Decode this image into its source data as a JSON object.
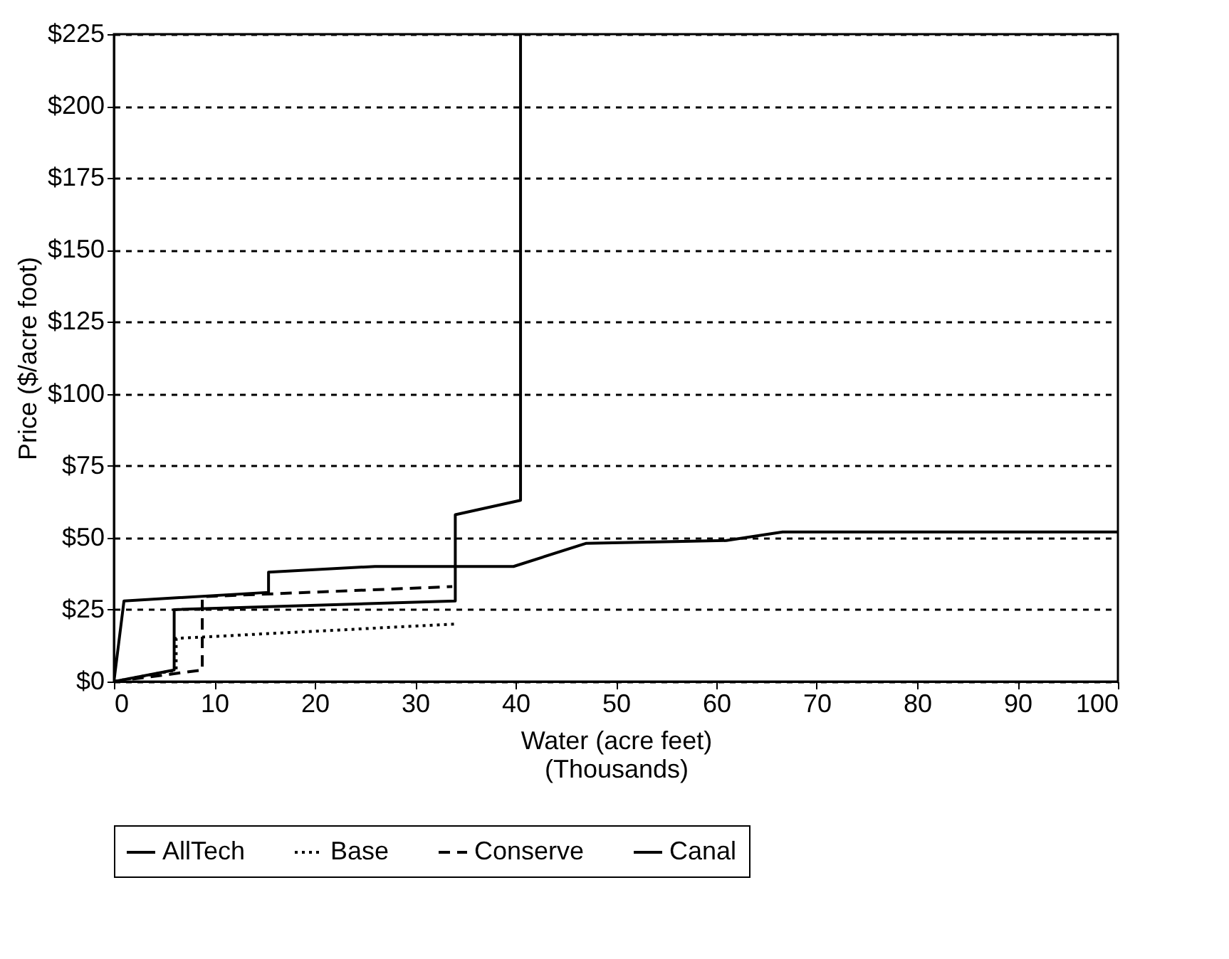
{
  "chart_data": {
    "type": "line",
    "xlabel": "Water (acre feet)\n(Thousands)",
    "ylabel": "Price ($/acre foot)",
    "xlim": [
      0,
      100
    ],
    "xticks": [
      0,
      10,
      20,
      30,
      40,
      50,
      60,
      70,
      80,
      90,
      100
    ],
    "ylim": [
      0,
      225
    ],
    "yticks": [
      {
        "value": 0,
        "label": "$0"
      },
      {
        "value": 25,
        "label": "$25"
      },
      {
        "value": 50,
        "label": "$50"
      },
      {
        "value": 75,
        "label": "$75"
      },
      {
        "value": 100,
        "label": "$100"
      },
      {
        "value": 125,
        "label": "$125"
      },
      {
        "value": 150,
        "label": "$150"
      },
      {
        "value": 175,
        "label": "$175"
      },
      {
        "value": 200,
        "label": "$200"
      },
      {
        "value": 225,
        "label": "$225"
      }
    ],
    "grid": "y",
    "legend": "bottom",
    "series": [
      {
        "name": "AllTech",
        "color": "#000000",
        "line_style": "solid",
        "x": [
          0,
          6,
          6,
          34,
          34,
          40.5,
          40.5
        ],
        "values": [
          0,
          4,
          25,
          28,
          58,
          63,
          225
        ]
      },
      {
        "name": "Base",
        "color": "#000000",
        "line_style": "dotted",
        "x": [
          0,
          6.2,
          6.2,
          34
        ],
        "values": [
          0,
          4,
          15,
          20
        ]
      },
      {
        "name": "Conserve",
        "color": "#000000",
        "line_style": "dashed",
        "x": [
          0,
          8.8,
          8.8,
          33.7
        ],
        "values": [
          0,
          4,
          29.5,
          33
        ]
      },
      {
        "name": "Canal",
        "color": "#000000",
        "line_style": "solid",
        "x": [
          0,
          1,
          15.4,
          15.4,
          26,
          39.8,
          47,
          61,
          66.6,
          100
        ],
        "values": [
          0,
          28,
          31,
          38,
          40,
          40,
          48,
          49,
          52,
          52
        ]
      }
    ]
  }
}
